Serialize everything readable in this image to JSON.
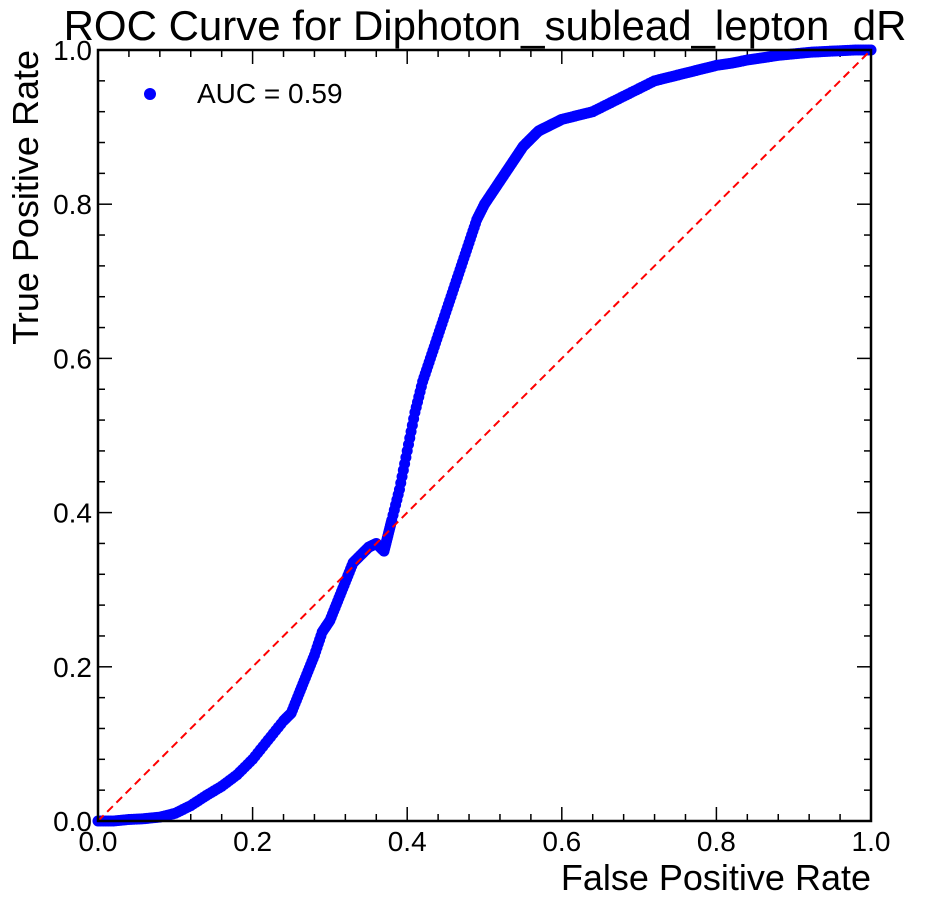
{
  "chart_data": {
    "type": "scatter",
    "title": "ROC Curve for Diphoton_sublead_lepton_dR",
    "xlabel": "False Positive Rate",
    "ylabel": "True Positive Rate",
    "xlim": [
      0.0,
      1.0
    ],
    "ylim": [
      0.0,
      1.0
    ],
    "xticks": [
      "0.0",
      "0.2",
      "0.4",
      "0.6",
      "0.8",
      "1.0"
    ],
    "yticks": [
      "0.0",
      "0.2",
      "0.4",
      "0.6",
      "0.8",
      "1.0"
    ],
    "grid": false,
    "legend_position": "top-left",
    "series": [
      {
        "name": "AUC = 0.59",
        "color": "#0000ff",
        "marker": "circle",
        "points": [
          [
            0.0,
            0.0
          ],
          [
            0.02,
            0.0
          ],
          [
            0.04,
            0.002
          ],
          [
            0.06,
            0.003
          ],
          [
            0.08,
            0.005
          ],
          [
            0.1,
            0.01
          ],
          [
            0.12,
            0.02
          ],
          [
            0.14,
            0.033
          ],
          [
            0.16,
            0.045
          ],
          [
            0.18,
            0.06
          ],
          [
            0.2,
            0.08
          ],
          [
            0.22,
            0.105
          ],
          [
            0.24,
            0.13
          ],
          [
            0.25,
            0.14
          ],
          [
            0.26,
            0.165
          ],
          [
            0.27,
            0.19
          ],
          [
            0.28,
            0.215
          ],
          [
            0.29,
            0.245
          ],
          [
            0.3,
            0.26
          ],
          [
            0.31,
            0.285
          ],
          [
            0.32,
            0.31
          ],
          [
            0.33,
            0.335
          ],
          [
            0.34,
            0.345
          ],
          [
            0.35,
            0.355
          ],
          [
            0.36,
            0.36
          ],
          [
            0.37,
            0.35
          ],
          [
            0.375,
            0.37
          ],
          [
            0.38,
            0.39
          ],
          [
            0.39,
            0.43
          ],
          [
            0.4,
            0.48
          ],
          [
            0.41,
            0.53
          ],
          [
            0.42,
            0.57
          ],
          [
            0.43,
            0.6
          ],
          [
            0.44,
            0.63
          ],
          [
            0.45,
            0.66
          ],
          [
            0.46,
            0.69
          ],
          [
            0.47,
            0.72
          ],
          [
            0.48,
            0.75
          ],
          [
            0.49,
            0.78
          ],
          [
            0.5,
            0.8
          ],
          [
            0.51,
            0.815
          ],
          [
            0.52,
            0.83
          ],
          [
            0.53,
            0.845
          ],
          [
            0.54,
            0.86
          ],
          [
            0.55,
            0.875
          ],
          [
            0.56,
            0.885
          ],
          [
            0.57,
            0.895
          ],
          [
            0.58,
            0.9
          ],
          [
            0.59,
            0.905
          ],
          [
            0.6,
            0.91
          ],
          [
            0.62,
            0.915
          ],
          [
            0.64,
            0.92
          ],
          [
            0.66,
            0.93
          ],
          [
            0.68,
            0.94
          ],
          [
            0.7,
            0.95
          ],
          [
            0.72,
            0.96
          ],
          [
            0.74,
            0.965
          ],
          [
            0.76,
            0.97
          ],
          [
            0.78,
            0.975
          ],
          [
            0.8,
            0.98
          ],
          [
            0.82,
            0.983
          ],
          [
            0.84,
            0.987
          ],
          [
            0.86,
            0.99
          ],
          [
            0.88,
            0.993
          ],
          [
            0.9,
            0.995
          ],
          [
            0.92,
            0.997
          ],
          [
            0.94,
            0.998
          ],
          [
            0.96,
            0.999
          ],
          [
            0.98,
            1.0
          ],
          [
            1.0,
            1.0
          ]
        ]
      }
    ],
    "reference_line": {
      "points": [
        [
          0.0,
          0.0
        ],
        [
          1.0,
          1.0
        ]
      ],
      "color": "#ff0000",
      "style": "dashed"
    }
  }
}
